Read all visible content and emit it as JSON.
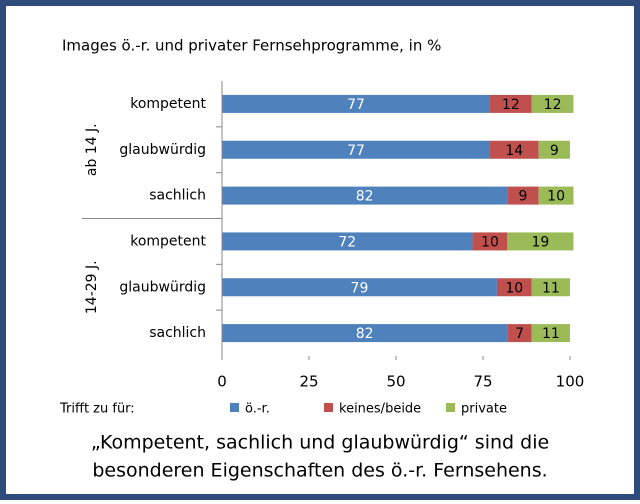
{
  "chart_data": {
    "type": "stacked_barh",
    "title": "Images ö.-r. und privater Fernsehprogramme, in %",
    "groups": [
      {
        "name": "ab 14 J.",
        "categories": [
          "kompetent",
          "glaubwürdig",
          "sachlich"
        ]
      },
      {
        "name": "14-29 J.",
        "categories": [
          "kompetent",
          "glaubwürdig",
          "sachlich"
        ]
      }
    ],
    "series": [
      {
        "name": "ö.-r.",
        "color": "#4f81bd",
        "label_color": "#ffffff",
        "values": [
          77,
          77,
          82,
          72,
          79,
          82
        ]
      },
      {
        "name": "keines/beide",
        "color": "#c0504d",
        "label_color": "#000000",
        "values": [
          12,
          14,
          9,
          10,
          10,
          7
        ]
      },
      {
        "name": "private",
        "color": "#9bbb59",
        "label_color": "#000000",
        "values": [
          12,
          9,
          10,
          19,
          11,
          11
        ]
      }
    ],
    "xlim": [
      0,
      100
    ],
    "xticks": [
      0,
      25,
      50,
      75,
      100
    ],
    "legend_title": "Trifft zu für:",
    "caption": [
      "„Kompetent, sachlich und glaubwürdig“ sind die",
      "besonderen Eigenschaften des ö.-r. Fernsehens."
    ]
  }
}
